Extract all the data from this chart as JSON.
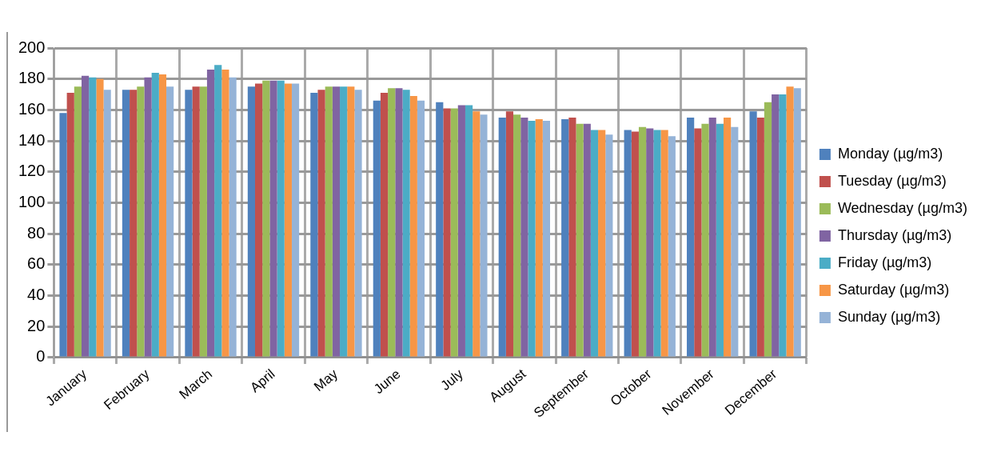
{
  "chart_data": {
    "type": "bar",
    "categories": [
      "January",
      "February",
      "March",
      "April",
      "May",
      "June",
      "July",
      "August",
      "September",
      "October",
      "November",
      "December"
    ],
    "series": [
      {
        "name": "Monday (µg/m3)",
        "color": "#4f81bd",
        "values": [
          158,
          173,
          173,
          175,
          171,
          166,
          165,
          155,
          154,
          147,
          155,
          159
        ]
      },
      {
        "name": "Tuesday (µg/m3)",
        "color": "#c0504d",
        "values": [
          171,
          173,
          175,
          177,
          173,
          171,
          161,
          159,
          155,
          146,
          148,
          155
        ]
      },
      {
        "name": "Wednesday (µg/m3)",
        "color": "#9bbb59",
        "values": [
          175,
          175,
          175,
          179,
          175,
          174,
          161,
          157,
          151,
          149,
          151,
          165
        ]
      },
      {
        "name": "Thursday (µg/m3)",
        "color": "#8064a2",
        "values": [
          182,
          181,
          186,
          179,
          175,
          174,
          163,
          155,
          151,
          148,
          155,
          170
        ]
      },
      {
        "name": "Friday (µg/m3)",
        "color": "#4bacc6",
        "values": [
          181,
          184,
          189,
          179,
          175,
          173,
          163,
          153,
          147,
          147,
          151,
          170
        ]
      },
      {
        "name": "Saturday (µg/m3)",
        "color": "#f79646",
        "values": [
          180,
          183,
          186,
          177,
          175,
          169,
          159,
          154,
          147,
          147,
          155,
          175
        ]
      },
      {
        "name": "Sunday (µg/m3)",
        "color": "#95b3d7",
        "values": [
          173,
          175,
          181,
          177,
          173,
          166,
          157,
          153,
          144,
          143,
          149,
          174
        ]
      }
    ],
    "ylim": [
      0,
      200
    ],
    "yticks": [
      0,
      20,
      40,
      60,
      80,
      100,
      120,
      140,
      160,
      180,
      200
    ],
    "grid": true,
    "legend": "right"
  }
}
